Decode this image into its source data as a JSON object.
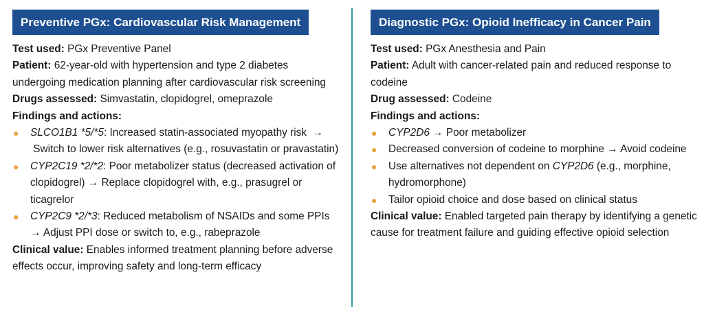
{
  "left": {
    "title": "Preventive PGx: Cardiovascular Risk Management",
    "test_label": "Test used:",
    "test_value": " PGx Preventive Panel",
    "patient_label": "Patient:",
    "patient_value": " 62-year-old with hypertension and type 2 diabetes undergoing medication planning after cardiovascular risk screening",
    "drugs_label": "Drugs assessed:",
    "drugs_value": " Simvastatin, clopidogrel, omeprazole",
    "findings_label": "Findings and actions:",
    "items": [
      {
        "gene": "SLCO1B1 *5/*5",
        "text": ": Increased statin-associated myopathy risk  →  Switch to lower risk alternatives (e.g., rosuvastatin or pravastatin)"
      },
      {
        "gene": "CYP2C19 *2/*2",
        "text": ": Poor metabolizer status (decreased activation of clopidogrel) → Replace clopidogrel with, e.g., prasugrel or ticagrelor"
      },
      {
        "gene": "CYP2C9 *2/*3",
        "text": ": Reduced metabolism of NSAIDs and some PPIs → Adjust PPI dose or switch to, e.g., rabeprazole"
      }
    ],
    "value_label": "Clinical value:",
    "value_text": " Enables informed treatment planning before adverse effects occur, improving safety and long-term efficacy"
  },
  "right": {
    "title": "Diagnostic PGx: Opioid Inefficacy in Cancer Pain",
    "test_label": "Test used:",
    "test_value": " PGx Anesthesia and Pain",
    "patient_label": "Patient:",
    "patient_value": " Adult with cancer-related pain and reduced response to codeine",
    "drug_label": "Drug assessed:",
    "drug_value": " Codeine",
    "findings_label": "Findings and actions:",
    "item1_gene": "CYP2D6",
    "item1_text": " → Poor metabolizer",
    "item2_text": "Decreased conversion of codeine to morphine → Avoid codeine",
    "item3_pre": "Use alternatives not dependent on ",
    "item3_gene": "CYP2D6",
    "item3_post": " (e.g., morphine, hydromorphone)",
    "item4_text": "Tailor opioid choice and dose based on clinical status",
    "value_label": "Clinical value:",
    "value_text": " Enabled targeted pain therapy by identifying a genetic cause for treatment failure and guiding effective opioid selection"
  },
  "colors": {
    "banner": "#1d4f91",
    "divider": "#2aa0a8",
    "bullet": "#e8a33d"
  }
}
